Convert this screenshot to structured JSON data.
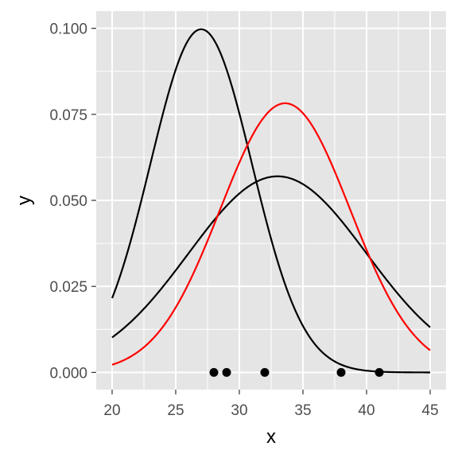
{
  "chart_data": {
    "type": "line",
    "xlabel": "x",
    "ylabel": "y",
    "xlim": [
      18.75,
      46.25
    ],
    "ylim": [
      -0.005,
      0.105
    ],
    "x_ticks": [
      20,
      25,
      30,
      35,
      40,
      45
    ],
    "x_tick_labels": [
      "20",
      "25",
      "30",
      "35",
      "40",
      "45"
    ],
    "y_ticks": [
      0.0,
      0.025,
      0.05,
      0.075,
      0.1
    ],
    "y_tick_labels": [
      "0.000",
      "0.025",
      "0.050",
      "0.075",
      "0.100"
    ],
    "grid": true,
    "panel_background": "#e5e5e5",
    "grid_color": "#ffffff",
    "curve_domain": [
      20,
      45
    ],
    "series": [
      {
        "type": "line",
        "color": "#000000",
        "curve": "normal-density",
        "mean": 27,
        "sd": 4
      },
      {
        "type": "line",
        "color": "#000000",
        "curve": "normal-density",
        "mean": 33,
        "sd": 7
      },
      {
        "type": "line",
        "color": "#ff0000",
        "curve": "normal-density",
        "mean": 33.6,
        "sd": 5.1
      },
      {
        "type": "scatter",
        "color": "#000000",
        "x": [
          28,
          29,
          32,
          38,
          41
        ],
        "y": [
          0,
          0,
          0,
          0,
          0
        ]
      }
    ]
  }
}
